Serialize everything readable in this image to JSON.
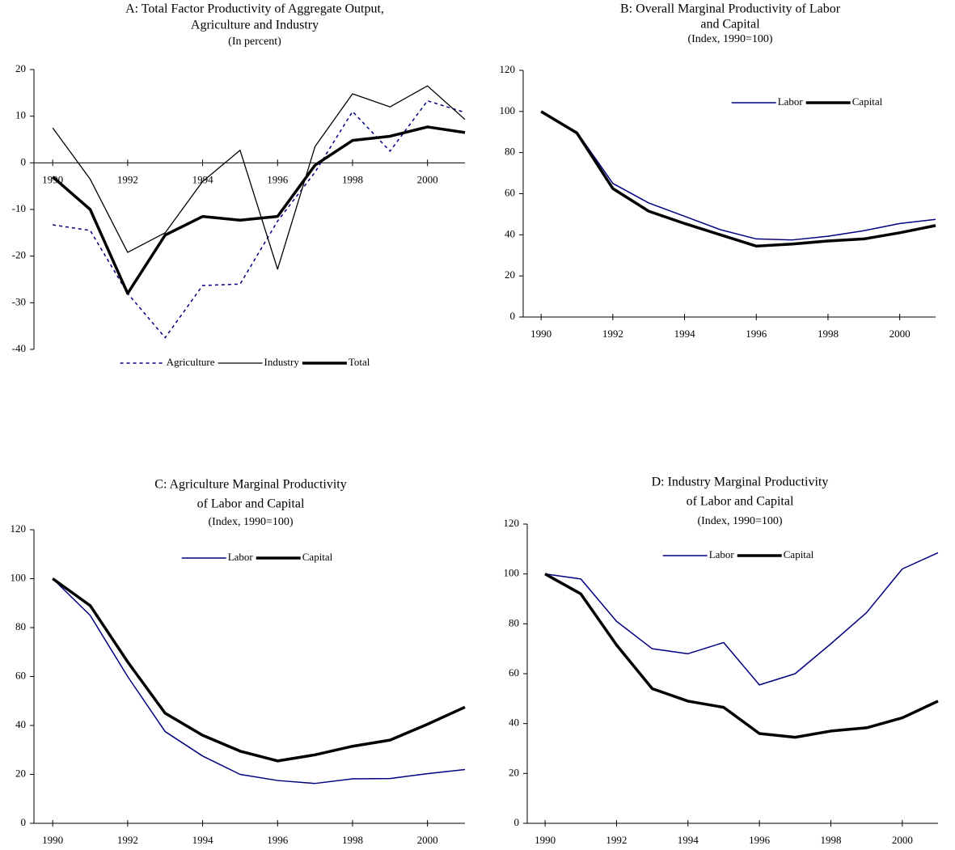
{
  "chart_data": [
    {
      "type": "line",
      "title": [
        "A: Total Factor Productivity of Aggregate Output,",
        "Agriculture and Industry"
      ],
      "subtitle": "(In percent)",
      "x": [
        1990,
        1991,
        1992,
        1993,
        1994,
        1995,
        1996,
        1997,
        1998,
        1999,
        2000,
        2001
      ],
      "xlim": [
        1989.5,
        2001
      ],
      "xticks": [
        1990,
        1992,
        1994,
        1996,
        1998,
        2000
      ],
      "ylim": [
        -40,
        20
      ],
      "yticks": [
        -40,
        -30,
        -20,
        -10,
        0,
        10,
        20
      ],
      "legend": "bottom",
      "series": [
        {
          "name": "Agriculture",
          "color": "#000080",
          "dashed": true,
          "linewidth": 1.5,
          "values": [
            -13.3,
            -14.5,
            -28,
            -37.5,
            -26.3,
            -26,
            -12.5,
            -2,
            11,
            2.5,
            13.3,
            10.8
          ]
        },
        {
          "name": "Industry",
          "color": "#000000",
          "dashed": false,
          "linewidth": 1.3,
          "values": [
            7.5,
            -3.5,
            -19.2,
            -15,
            -4,
            2.7,
            -22.8,
            3.5,
            14.8,
            12,
            16.5,
            9.3
          ]
        },
        {
          "name": "Total",
          "color": "#000000",
          "dashed": false,
          "linewidth": 3.5,
          "values": [
            -3,
            -10,
            -28,
            -15.5,
            -11.5,
            -12.3,
            -11.5,
            -0.5,
            4.8,
            5.7,
            7.7,
            6.5
          ]
        }
      ]
    },
    {
      "type": "line",
      "title": [
        "B: Overall Marginal Productivity of Labor",
        "and Capital"
      ],
      "subtitle": "(Index, 1990=100)",
      "x": [
        1990,
        1991,
        1992,
        1993,
        1994,
        1995,
        1996,
        1997,
        1998,
        1999,
        2000,
        2001
      ],
      "xlim": [
        1989.5,
        2001
      ],
      "xticks": [
        1990,
        1992,
        1994,
        1996,
        1998,
        2000
      ],
      "ylim": [
        0,
        120
      ],
      "yticks": [
        0,
        20,
        40,
        60,
        80,
        100,
        120
      ],
      "legend": "top",
      "series": [
        {
          "name": "Labor",
          "color": "#000080",
          "dashed": false,
          "linewidth": 1.5,
          "values": [
            100,
            90,
            65,
            55.5,
            49,
            42.5,
            38,
            37.5,
            39.3,
            42,
            45.5,
            47.5
          ]
        },
        {
          "name": "Capital",
          "color": "#000000",
          "dashed": false,
          "linewidth": 3.5,
          "values": [
            100,
            89.5,
            62.5,
            51.5,
            45.5,
            40,
            34.5,
            35.5,
            37,
            38,
            41,
            44.5
          ]
        }
      ]
    },
    {
      "type": "line",
      "title": [
        "C:  Agriculture Marginal Productivity",
        "of Labor and Capital"
      ],
      "subtitle": "(Index, 1990=100)",
      "x": [
        1990,
        1991,
        1992,
        1993,
        1994,
        1995,
        1996,
        1997,
        1998,
        1999,
        2000,
        2001
      ],
      "xlim": [
        1989.5,
        2001
      ],
      "xticks": [
        1990,
        1992,
        1994,
        1996,
        1998,
        2000
      ],
      "ylim": [
        0,
        120
      ],
      "yticks": [
        0,
        20,
        40,
        60,
        80,
        100,
        120
      ],
      "legend": "top",
      "series": [
        {
          "name": "Labor",
          "color": "#000080",
          "dashed": false,
          "linewidth": 1.5,
          "values": [
            100,
            85,
            60,
            37.5,
            27.5,
            20,
            17.5,
            16.3,
            18.2,
            18.3,
            20.3,
            22
          ]
        },
        {
          "name": "Capital",
          "color": "#000000",
          "dashed": false,
          "linewidth": 3.5,
          "values": [
            100,
            89,
            66,
            45,
            36,
            29.5,
            25.5,
            28,
            31.5,
            34,
            40.5,
            47.5
          ]
        }
      ]
    },
    {
      "type": "line",
      "title": [
        "D: Industry Marginal Productivity",
        "of Labor and Capital"
      ],
      "subtitle": "(Index, 1990=100)",
      "x": [
        1990,
        1991,
        1992,
        1993,
        1994,
        1995,
        1996,
        1997,
        1998,
        1999,
        2000,
        2001
      ],
      "xlim": [
        1989.5,
        2001
      ],
      "xticks": [
        1990,
        1992,
        1994,
        1996,
        1998,
        2000
      ],
      "ylim": [
        0,
        120
      ],
      "yticks": [
        0,
        20,
        40,
        60,
        80,
        100,
        120
      ],
      "legend": "top",
      "series": [
        {
          "name": "Labor",
          "color": "#000080",
          "dashed": false,
          "linewidth": 1.5,
          "values": [
            100,
            98,
            81,
            70,
            68,
            72.5,
            55.5,
            60,
            72,
            84.5,
            102,
            108.5
          ]
        },
        {
          "name": "Capital",
          "color": "#000000",
          "dashed": false,
          "linewidth": 3.5,
          "values": [
            100,
            92,
            71.5,
            54,
            49,
            46.5,
            36,
            34.5,
            37,
            38.3,
            42.3,
            49
          ]
        }
      ]
    }
  ]
}
